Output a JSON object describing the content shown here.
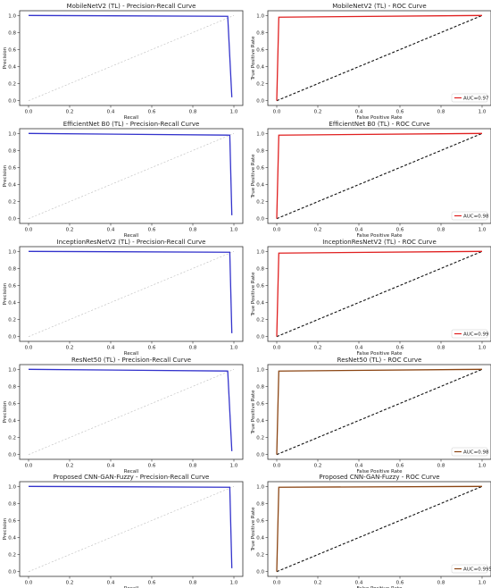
{
  "chart_data": [
    {
      "type": "line",
      "title": "MobileNetV2 (TL) - Precision-Recall Curve",
      "xlabel": "Recall",
      "ylabel": "Precision",
      "xlim": [
        0.0,
        1.0
      ],
      "ylim": [
        0.0,
        1.0
      ],
      "xticks": [
        "0.0",
        "0.2",
        "0.4",
        "0.6",
        "0.8",
        "1.0"
      ],
      "yticks": [
        "0.0",
        "0.2",
        "0.4",
        "0.6",
        "0.8",
        "1.0"
      ],
      "series": [
        {
          "color": "#3333cc",
          "style": "solid",
          "x": [
            0.0,
            0.97,
            0.99
          ],
          "y": [
            1.0,
            0.99,
            0.04
          ]
        },
        {
          "color": "#bbbbbb",
          "style": "dashed",
          "x": [
            0.0,
            1.0
          ],
          "y": [
            0.0,
            1.0
          ]
        }
      ]
    },
    {
      "type": "line",
      "title": "MobileNetV2 (TL) - ROC Curve",
      "xlabel": "False Positive Rate",
      "ylabel": "True Positive Rate",
      "xlim": [
        0.0,
        1.0
      ],
      "ylim": [
        0.0,
        1.0
      ],
      "xticks": [
        "0.0",
        "0.2",
        "0.4",
        "0.6",
        "0.8",
        "1.0"
      ],
      "yticks": [
        "0.0",
        "0.2",
        "0.4",
        "0.6",
        "0.8",
        "1.0"
      ],
      "legend": "bottom-right",
      "series": [
        {
          "name": "AUC=0.97",
          "color": "#e02020",
          "style": "solid",
          "x": [
            0.0,
            0.01,
            1.0
          ],
          "y": [
            0.0,
            0.98,
            1.0
          ]
        },
        {
          "color": "#111111",
          "style": "dashed",
          "x": [
            0.0,
            1.0
          ],
          "y": [
            0.0,
            1.0
          ]
        }
      ]
    },
    {
      "type": "line",
      "title": "EfficientNet B0 (TL) - Precision-Recall Curve",
      "xlabel": "Recall",
      "ylabel": "Precision",
      "xlim": [
        0.0,
        1.0
      ],
      "ylim": [
        0.0,
        1.0
      ],
      "xticks": [
        "0.0",
        "0.2",
        "0.4",
        "0.6",
        "0.8",
        "1.0"
      ],
      "yticks": [
        "0.0",
        "0.2",
        "0.4",
        "0.6",
        "0.8",
        "1.0"
      ],
      "series": [
        {
          "color": "#3333cc",
          "style": "solid",
          "x": [
            0.0,
            0.98,
            0.99
          ],
          "y": [
            1.0,
            0.98,
            0.04
          ]
        },
        {
          "color": "#bbbbbb",
          "style": "dashed",
          "x": [
            0.0,
            1.0
          ],
          "y": [
            0.0,
            1.0
          ]
        }
      ]
    },
    {
      "type": "line",
      "title": "EfficientNet B0 (TL) - ROC Curve",
      "xlabel": "False Positive Rate",
      "ylabel": "True Positive Rate",
      "xlim": [
        0.0,
        1.0
      ],
      "ylim": [
        0.0,
        1.0
      ],
      "xticks": [
        "0.0",
        "0.2",
        "0.4",
        "0.6",
        "0.8",
        "1.0"
      ],
      "yticks": [
        "0.0",
        "0.2",
        "0.4",
        "0.6",
        "0.8",
        "1.0"
      ],
      "legend": "bottom-right",
      "series": [
        {
          "name": "AUC=0.98",
          "color": "#e02020",
          "style": "solid",
          "x": [
            0.0,
            0.01,
            1.0
          ],
          "y": [
            0.0,
            0.98,
            1.0
          ]
        },
        {
          "color": "#111111",
          "style": "dashed",
          "x": [
            0.0,
            1.0
          ],
          "y": [
            0.0,
            1.0
          ]
        }
      ]
    },
    {
      "type": "line",
      "title": "InceptionResNetV2 (TL) - Precision-Recall Curve",
      "xlabel": "Recall",
      "ylabel": "Precision",
      "xlim": [
        0.0,
        1.0
      ],
      "ylim": [
        0.0,
        1.0
      ],
      "xticks": [
        "0.0",
        "0.2",
        "0.4",
        "0.6",
        "0.8",
        "1.0"
      ],
      "yticks": [
        "0.0",
        "0.2",
        "0.4",
        "0.6",
        "0.8",
        "1.0"
      ],
      "series": [
        {
          "color": "#3333cc",
          "style": "solid",
          "x": [
            0.0,
            0.98,
            0.99
          ],
          "y": [
            1.0,
            0.99,
            0.04
          ]
        },
        {
          "color": "#bbbbbb",
          "style": "dashed",
          "x": [
            0.0,
            1.0
          ],
          "y": [
            0.0,
            1.0
          ]
        }
      ]
    },
    {
      "type": "line",
      "title": "InceptionResNetV2 (TL) - ROC Curve",
      "xlabel": "False Positive Rate",
      "ylabel": "True Positive Rate",
      "xlim": [
        0.0,
        1.0
      ],
      "ylim": [
        0.0,
        1.0
      ],
      "xticks": [
        "0.0",
        "0.2",
        "0.4",
        "0.6",
        "0.8",
        "1.0"
      ],
      "yticks": [
        "0.0",
        "0.2",
        "0.4",
        "0.6",
        "0.8",
        "1.0"
      ],
      "legend": "bottom-right",
      "series": [
        {
          "name": "AUC=0.99",
          "color": "#e02020",
          "style": "solid",
          "x": [
            0.0,
            0.01,
            1.0
          ],
          "y": [
            0.0,
            0.98,
            1.0
          ]
        },
        {
          "color": "#111111",
          "style": "dashed",
          "x": [
            0.0,
            1.0
          ],
          "y": [
            0.0,
            1.0
          ]
        }
      ]
    },
    {
      "type": "line",
      "title": "ResNet50 (TL) - Precision-Recall Curve",
      "xlabel": "Recall",
      "ylabel": "Precision",
      "xlim": [
        0.0,
        1.0
      ],
      "ylim": [
        0.0,
        1.0
      ],
      "xticks": [
        "0.0",
        "0.2",
        "0.4",
        "0.6",
        "0.8",
        "1.0"
      ],
      "yticks": [
        "0.0",
        "0.2",
        "0.4",
        "0.6",
        "0.8",
        "1.0"
      ],
      "series": [
        {
          "color": "#3333cc",
          "style": "solid",
          "x": [
            0.0,
            0.97,
            0.99
          ],
          "y": [
            1.0,
            0.98,
            0.04
          ]
        },
        {
          "color": "#bbbbbb",
          "style": "dashed",
          "x": [
            0.0,
            1.0
          ],
          "y": [
            0.0,
            1.0
          ]
        }
      ]
    },
    {
      "type": "line",
      "title": "ResNet50 (TL) - ROC Curve",
      "xlabel": "False Positive Rate",
      "ylabel": "True Positive Rate",
      "xlim": [
        0.0,
        1.0
      ],
      "ylim": [
        0.0,
        1.0
      ],
      "xticks": [
        "0.0",
        "0.2",
        "0.4",
        "0.6",
        "0.8",
        "1.0"
      ],
      "yticks": [
        "0.0",
        "0.2",
        "0.4",
        "0.6",
        "0.8",
        "1.0"
      ],
      "legend": "bottom-right",
      "series": [
        {
          "name": "AUC=0.98",
          "color": "#8b4513",
          "style": "solid",
          "x": [
            0.0,
            0.01,
            1.0
          ],
          "y": [
            0.0,
            0.98,
            1.0
          ]
        },
        {
          "color": "#111111",
          "style": "dashed",
          "x": [
            0.0,
            1.0
          ],
          "y": [
            0.0,
            1.0
          ]
        }
      ]
    },
    {
      "type": "line",
      "title": "Proposed CNN-GAN-Fuzzy - Precision-Recall Curve",
      "xlabel": "Recall",
      "ylabel": "Precision",
      "xlim": [
        0.0,
        1.0
      ],
      "ylim": [
        0.0,
        1.0
      ],
      "xticks": [
        "0.0",
        "0.2",
        "0.4",
        "0.6",
        "0.8",
        "1.0"
      ],
      "yticks": [
        "0.0",
        "0.2",
        "0.4",
        "0.6",
        "0.8",
        "1.0"
      ],
      "series": [
        {
          "color": "#3333cc",
          "style": "solid",
          "x": [
            0.0,
            0.98,
            0.99
          ],
          "y": [
            1.0,
            0.99,
            0.04
          ]
        },
        {
          "color": "#bbbbbb",
          "style": "dashed",
          "x": [
            0.0,
            1.0
          ],
          "y": [
            0.0,
            1.0
          ]
        }
      ]
    },
    {
      "type": "line",
      "title": "Proposed CNN-GAN-Fuzzy - ROC Curve",
      "xlabel": "False Positive Rate",
      "ylabel": "True Positive Rate",
      "xlim": [
        0.0,
        1.0
      ],
      "ylim": [
        0.0,
        1.0
      ],
      "xticks": [
        "0.0",
        "0.2",
        "0.4",
        "0.6",
        "0.8",
        "1.0"
      ],
      "yticks": [
        "0.0",
        "0.2",
        "0.4",
        "0.6",
        "0.8",
        "1.0"
      ],
      "legend": "bottom-right",
      "series": [
        {
          "name": "AUC=0.995",
          "color": "#8b4513",
          "style": "solid",
          "x": [
            0.0,
            0.01,
            1.0
          ],
          "y": [
            0.0,
            0.99,
            1.0
          ]
        },
        {
          "color": "#111111",
          "style": "dashed",
          "x": [
            0.0,
            1.0
          ],
          "y": [
            0.0,
            1.0
          ]
        }
      ]
    }
  ]
}
